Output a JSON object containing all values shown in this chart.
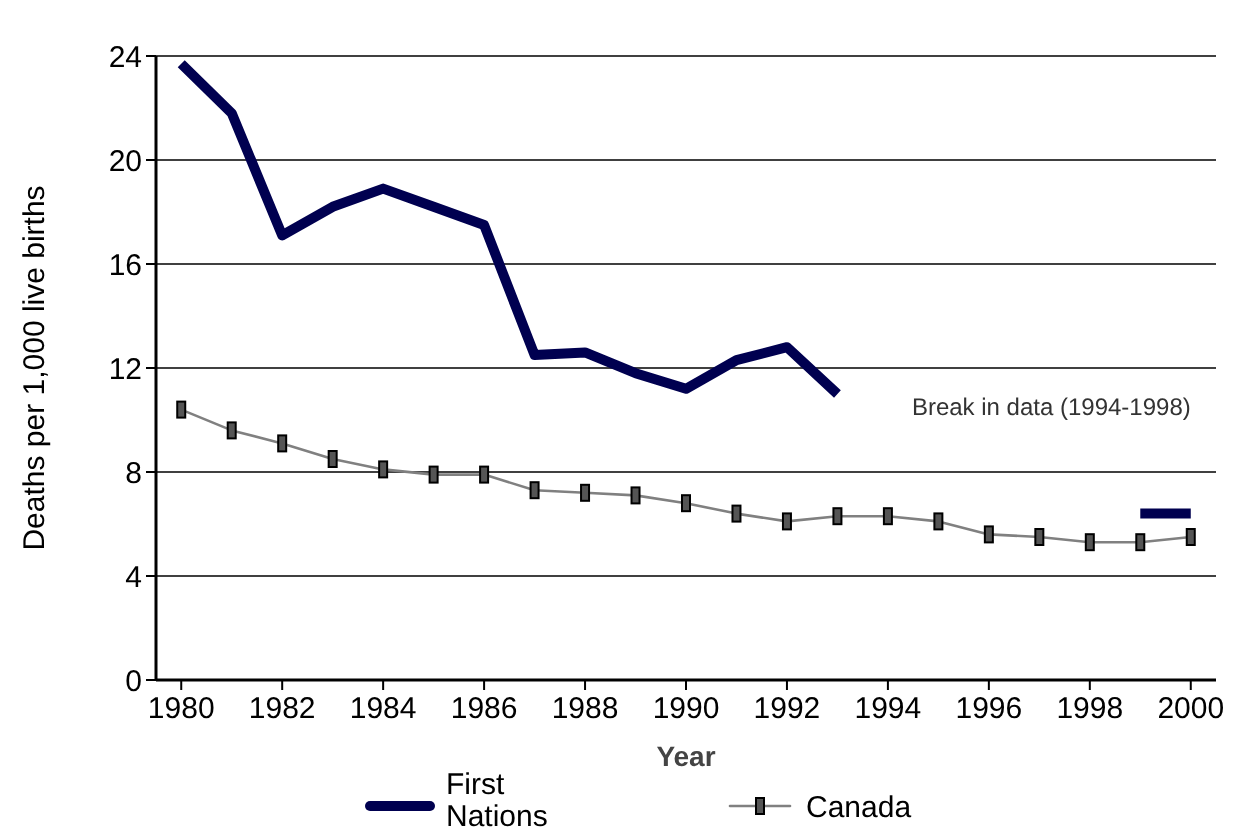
{
  "chart_data": {
    "type": "line",
    "xlabel": "Year",
    "ylabel": "Deaths per 1,000 live births",
    "x": [
      1980,
      1981,
      1982,
      1983,
      1984,
      1985,
      1986,
      1987,
      1988,
      1989,
      1990,
      1991,
      1992,
      1993,
      1994,
      1995,
      1996,
      1997,
      1998,
      1999,
      2000
    ],
    "xlim": [
      1979.5,
      2000.5
    ],
    "xticks": [
      1980,
      1982,
      1984,
      1986,
      1988,
      1990,
      1992,
      1994,
      1996,
      1998,
      2000
    ],
    "ylim": [
      0,
      24
    ],
    "yticks": [
      0,
      4,
      8,
      12,
      16,
      20,
      24
    ],
    "grid": "y",
    "legend": "bottom",
    "series": [
      {
        "name": "First Nations",
        "color": "#000050",
        "marker": "none",
        "values": [
          23.7,
          21.8,
          17.1,
          18.2,
          18.9,
          18.2,
          17.5,
          12.5,
          12.6,
          11.8,
          11.2,
          12.3,
          12.8,
          11.0,
          null,
          null,
          null,
          null,
          null,
          6.4,
          6.4
        ]
      },
      {
        "name": "Canada",
        "color": "#808080",
        "marker": "square",
        "values": [
          10.4,
          9.6,
          9.1,
          8.5,
          8.1,
          7.9,
          7.9,
          7.3,
          7.2,
          7.1,
          6.8,
          6.4,
          6.1,
          6.3,
          6.3,
          6.1,
          5.6,
          5.5,
          5.3,
          5.3,
          5.5
        ]
      }
    ],
    "annotations": [
      "Break in data (1994-1998)"
    ]
  }
}
